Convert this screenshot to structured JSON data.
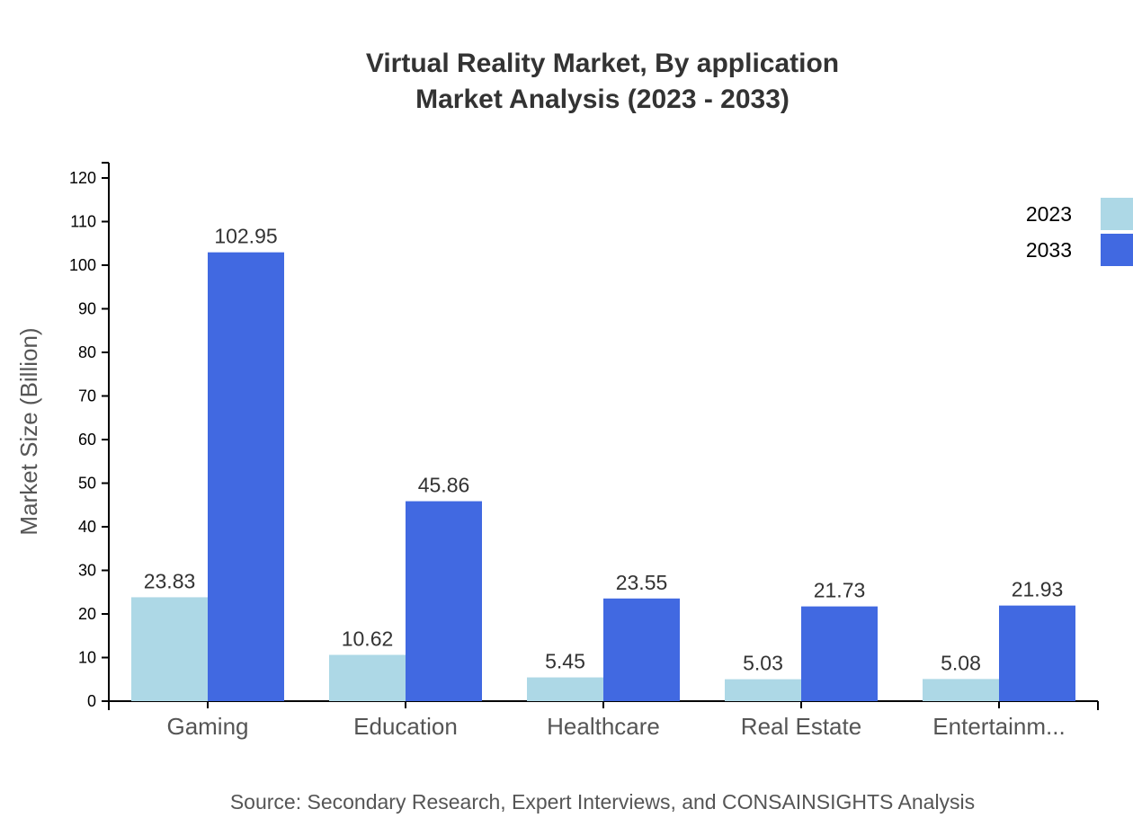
{
  "chart_data": {
    "type": "bar",
    "title": "Virtual Reality Market, By application",
    "subtitle": "Market Analysis (2023 - 2033)",
    "xlabel": "",
    "ylabel": "Market Size (Billion)",
    "ylim": [
      0,
      120
    ],
    "yticks": [
      0,
      10,
      20,
      30,
      40,
      50,
      60,
      70,
      80,
      90,
      100,
      110,
      120
    ],
    "categories": [
      "Gaming",
      "Education",
      "Healthcare",
      "Real Estate",
      "Entertainm..."
    ],
    "series": [
      {
        "name": "2023",
        "color": "#add8e6",
        "values": [
          23.83,
          10.62,
          5.45,
          5.03,
          5.08
        ]
      },
      {
        "name": "2033",
        "color": "#4169e1",
        "values": [
          102.95,
          45.86,
          23.55,
          21.73,
          21.93
        ]
      }
    ],
    "legend_position": "top-right",
    "grid": false,
    "source": "Source: Secondary Research, Expert Interviews, and CONSAINSIGHTS Analysis"
  }
}
